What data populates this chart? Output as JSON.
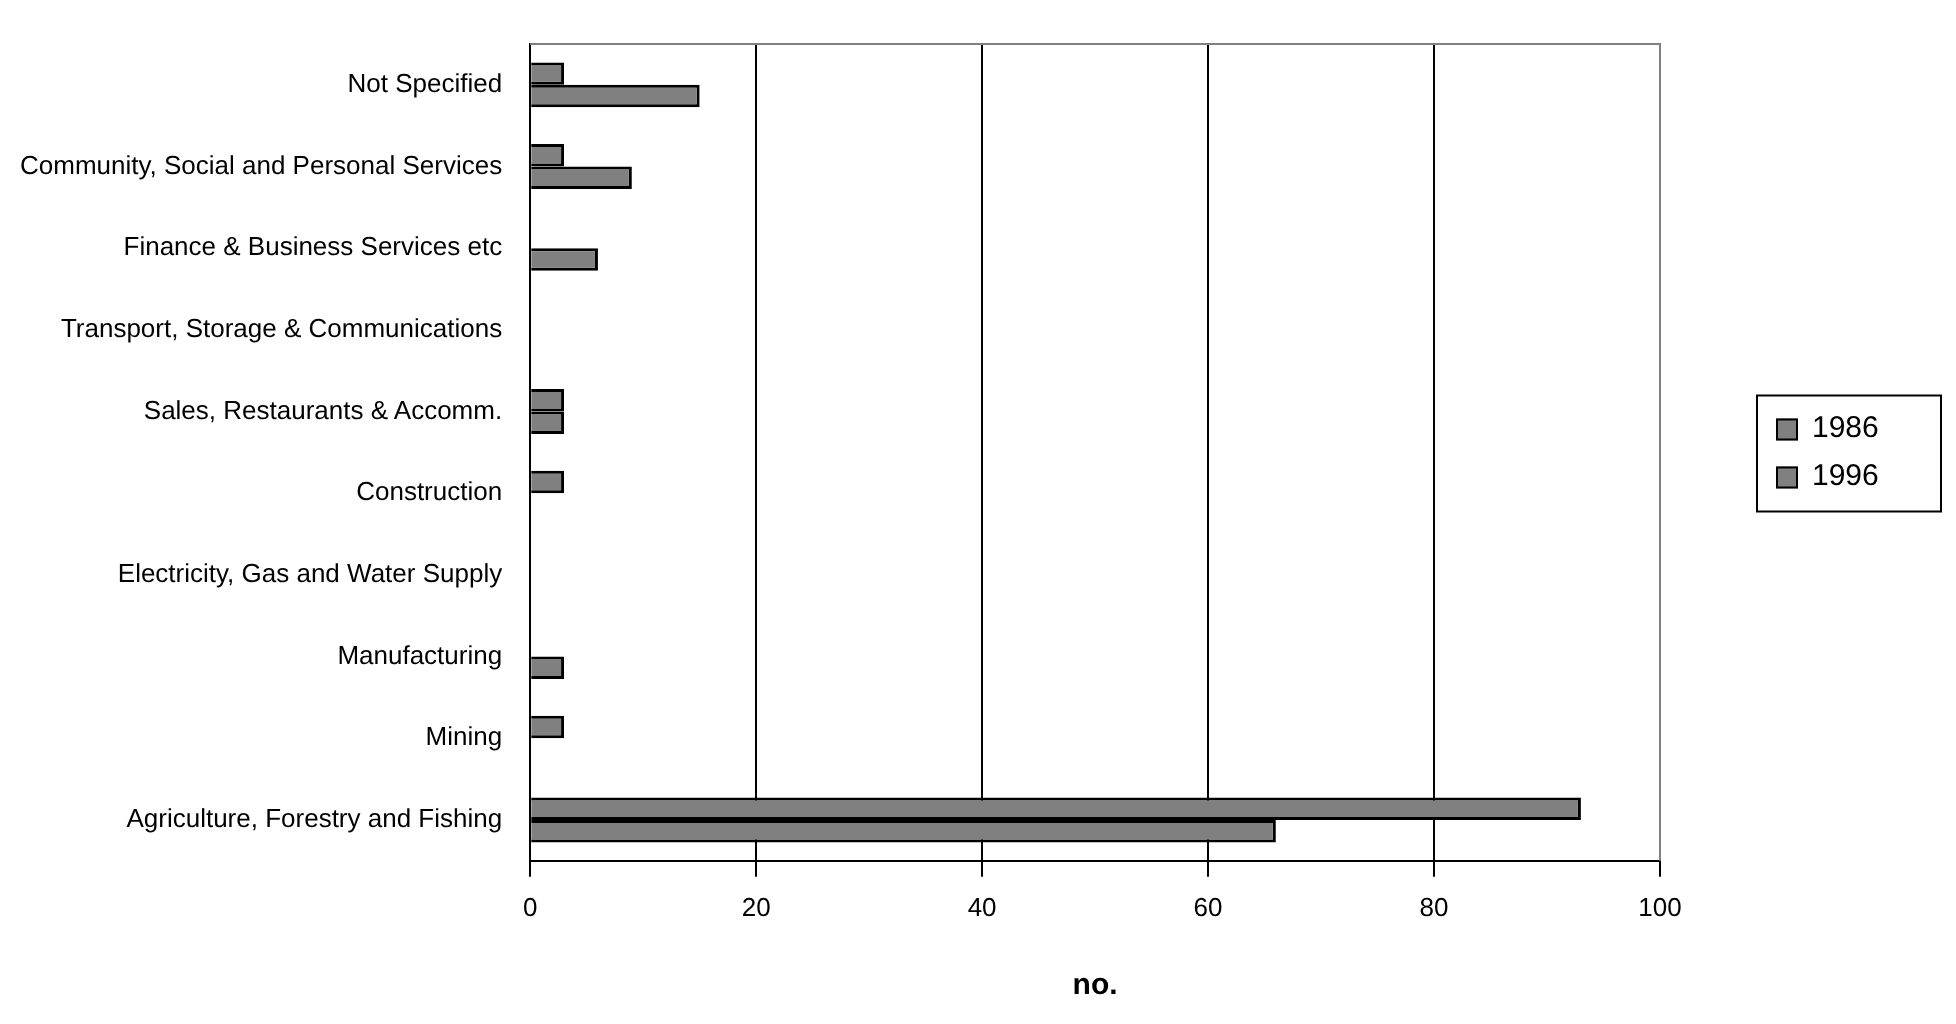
{
  "chart_data": {
    "type": "bar",
    "orientation": "horizontal",
    "xlabel": "no.",
    "categories": [
      "Not Specified",
      "Community, Social and Personal Services",
      "Finance & Business Services etc",
      "Transport, Storage & Communications",
      "Sales, Restaurants & Accomm.",
      "Construction",
      "Electricity, Gas and Water Supply",
      "Manufacturing",
      "Mining",
      "Agriculture, Forestry and Fishing"
    ],
    "series": [
      {
        "name": "1986",
        "color": "#808080",
        "values": [
          3,
          3,
          0,
          0,
          3,
          3,
          0,
          0,
          3,
          93
        ]
      },
      {
        "name": "1996",
        "color": "#808080",
        "values": [
          15,
          9,
          6,
          0,
          3,
          0,
          0,
          3,
          0,
          66
        ]
      }
    ],
    "xlim": [
      0,
      100
    ],
    "xticks": [
      0,
      20,
      40,
      60,
      80,
      100
    ],
    "grid": "x",
    "legend": "right"
  }
}
